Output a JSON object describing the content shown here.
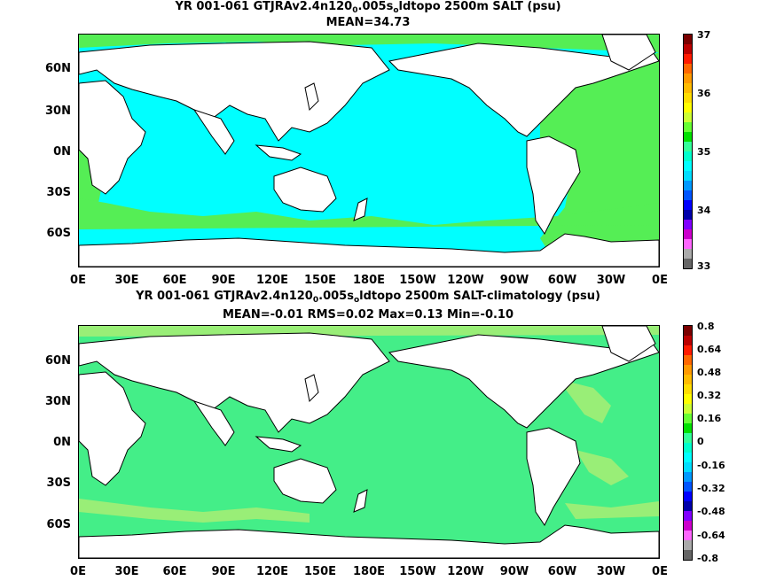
{
  "panel1": {
    "title_prefix": "YR 001-061 GTJRAv2.4n120",
    "title_sub1": "0",
    "title_mid": ".005s",
    "title_sub2": "o",
    "title_suffix": "ldtopo 2500m SALT (psu)",
    "subtitle": "MEAN=34.73",
    "colorbar_labels": [
      "37",
      "36",
      "35",
      "34",
      "33"
    ]
  },
  "panel2": {
    "title_prefix": "YR 001-061 GTJRAv2.4n120",
    "title_sub1": "0",
    "title_mid": ".005s",
    "title_sub2": "o",
    "title_suffix": "ldtopo 2500m SALT-climatology (psu)",
    "subtitle": "MEAN=-0.01   RMS=0.02   Max=0.13   Min=-0.10",
    "colorbar_labels": [
      "0.8",
      "0.64",
      "0.48",
      "0.32",
      "0.16",
      "0",
      "-0.16",
      "-0.32",
      "-0.48",
      "-0.64",
      "-0.8"
    ]
  },
  "lat_labels": [
    "60N",
    "30N",
    "0N",
    "30S",
    "60S"
  ],
  "lon_labels": [
    "0E",
    "30E",
    "60E",
    "90E",
    "120E",
    "150E",
    "180E",
    "150W",
    "120W",
    "90W",
    "60W",
    "30W",
    "0E"
  ],
  "colors": {
    "ocean_panel1": "#00ffff",
    "atlantic_panel1": "#55ee55",
    "ocean_panel2": "#44ee88",
    "light_patch": "#99ee77",
    "land": "#ffffff"
  },
  "colorbar_colors": [
    "#7a0000",
    "#bb0000",
    "#ff1a00",
    "#ff6600",
    "#ff9900",
    "#ffbb00",
    "#ffdd00",
    "#ffff00",
    "#ccff33",
    "#66ff33",
    "#00e000",
    "#33ff99",
    "#00ffcc",
    "#00ffff",
    "#00ddff",
    "#0099ff",
    "#0055ff",
    "#0000ff",
    "#0000aa",
    "#8000ff",
    "#cc00cc",
    "#ff66ff",
    "#aaaaaa",
    "#666666"
  ]
}
